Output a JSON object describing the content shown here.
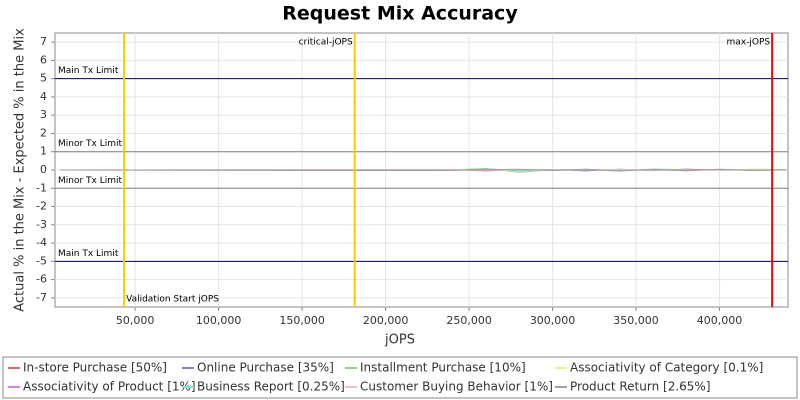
{
  "chart_data": {
    "type": "line",
    "title": "Request Mix Accuracy",
    "x_label": "jOPS",
    "y_label": "Actual % in the Mix - Expected % in the Mix",
    "x": [
      5000,
      240000,
      260000,
      280000,
      300000,
      320000,
      340000,
      360000,
      380000,
      400000,
      420000,
      440000
    ],
    "series": [
      {
        "name": "In-store Purchase [50%]",
        "color": "#e06666",
        "values": [
          0,
          0.02,
          -0.05,
          0.03,
          -0.02,
          0.04,
          -0.03,
          0.02,
          -0.04,
          0.03,
          -0.02,
          0.01
        ]
      },
      {
        "name": "Online Purchase [35%]",
        "color": "#8080e0",
        "values": [
          0,
          -0.03,
          0.06,
          -0.04,
          0.03,
          -0.05,
          0.04,
          -0.03,
          0.05,
          -0.02,
          0.03,
          -0.01
        ]
      },
      {
        "name": "Installment Purchase [10%]",
        "color": "#80e080",
        "values": [
          0,
          0.01,
          0.08,
          -0.12,
          0.02,
          0.03,
          -0.06,
          0.05,
          0.02,
          -0.03,
          0.04,
          0.02
        ]
      },
      {
        "name": "Associativity of Category [0.1%]",
        "color": "#f0f080",
        "values": [
          0,
          0,
          0.01,
          0,
          -0.01,
          0,
          0.01,
          0,
          -0.01,
          0,
          0.01,
          0
        ]
      },
      {
        "name": "Associativity of Product [1%]",
        "color": "#e080e0",
        "values": [
          0,
          0.01,
          -0.02,
          0.01,
          0.02,
          -0.01,
          0.01,
          -0.02,
          0.01,
          0.02,
          -0.01,
          0
        ]
      },
      {
        "name": "Business Report [0.25%]",
        "color": "#80e0e0",
        "values": [
          0,
          -0.01,
          0.01,
          -0.02,
          0.01,
          0,
          -0.01,
          0.02,
          -0.01,
          0.01,
          0,
          0
        ]
      },
      {
        "name": "Customer Buying Behavior [1%]",
        "color": "#f0c0c0",
        "values": [
          0,
          0.02,
          -0.01,
          0.02,
          -0.02,
          0.01,
          0.02,
          -0.01,
          0.01,
          -0.02,
          0.01,
          0
        ]
      },
      {
        "name": "Product Return [2.65%]",
        "color": "#a0a0a0",
        "values": [
          0,
          -0.02,
          0.03,
          0.04,
          -0.03,
          0.02,
          -0.04,
          0.03,
          -0.02,
          0.04,
          -0.03,
          0.01
        ]
      }
    ],
    "xlim": [
      2000,
      441000
    ],
    "ylim": [
      -7.5,
      7.5
    ],
    "xticks": [
      {
        "value": 50000,
        "label": "50,000"
      },
      {
        "value": 100000,
        "label": "100,000"
      },
      {
        "value": 150000,
        "label": "150,000"
      },
      {
        "value": 200000,
        "label": "200,000"
      },
      {
        "value": 250000,
        "label": "250,000"
      },
      {
        "value": 300000,
        "label": "300,000"
      },
      {
        "value": 350000,
        "label": "350,000"
      },
      {
        "value": 400000,
        "label": "400,000"
      }
    ],
    "yticks": [
      -7,
      -6,
      -5,
      -4,
      -3,
      -2,
      -1,
      0,
      1,
      2,
      3,
      4,
      5,
      6,
      7
    ],
    "grid": true,
    "hlines": [
      {
        "label": "Main Tx Limit",
        "value": 5,
        "color": "#000066"
      },
      {
        "label": "Minor Tx Limit",
        "value": 1,
        "color": "#808080"
      },
      {
        "label": "Minor Tx Limit",
        "value": -1,
        "color": "#808080"
      },
      {
        "label": "Main Tx Limit",
        "value": -5,
        "color": "#000066"
      }
    ],
    "vlines": [
      {
        "label": "Validation Start jOPS",
        "value": 43400,
        "color": "#ffc800",
        "label_pos": "bottom"
      },
      {
        "label": "critical-jOPS",
        "value": 181500,
        "color": "#ffc800",
        "label_pos": "top"
      },
      {
        "label": "max-jOPS",
        "value": 431500,
        "color": "#ff0000",
        "label_pos": "top"
      }
    ]
  }
}
